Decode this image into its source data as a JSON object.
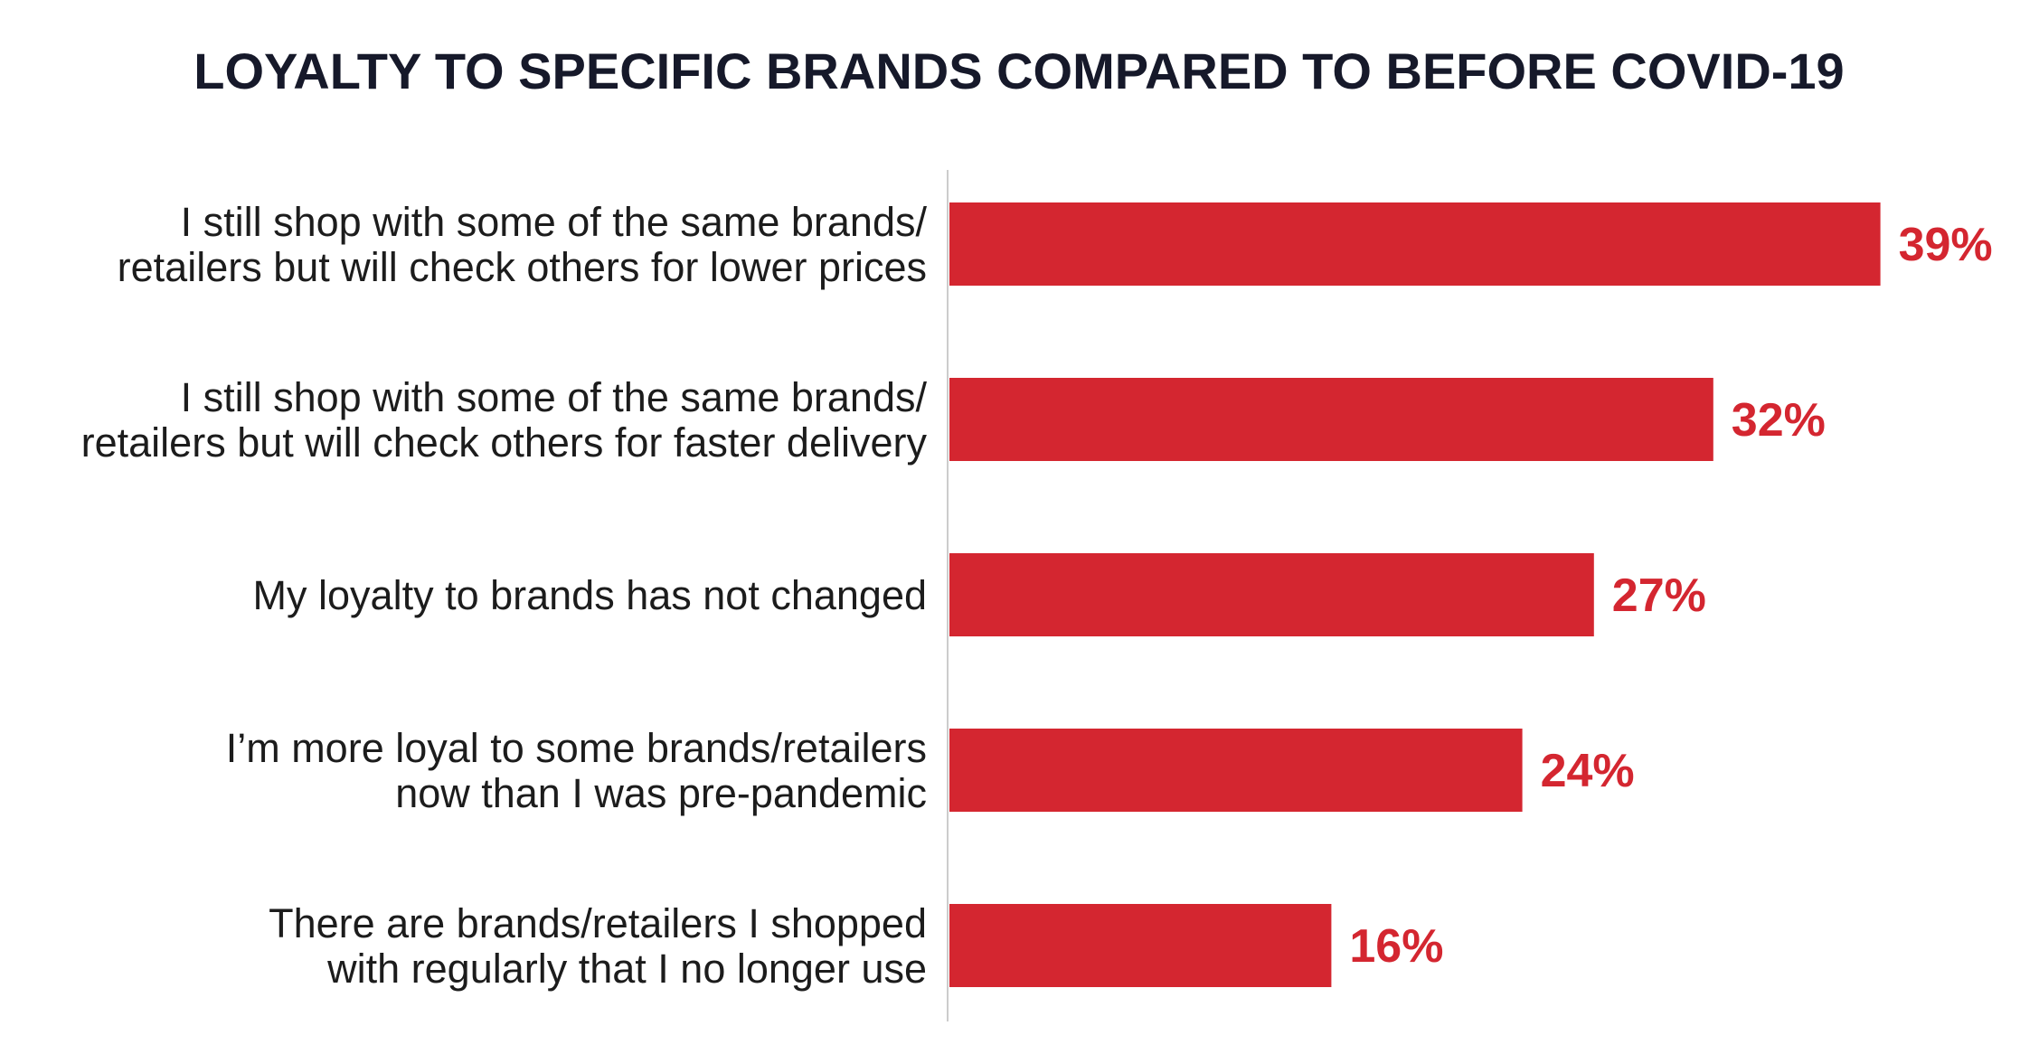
{
  "chart_data": {
    "type": "bar",
    "orientation": "horizontal",
    "title": "LOYALTY TO SPECIFIC BRANDS COMPARED TO BEFORE COVID-19",
    "categories": [
      [
        "I still shop with some of the same brands/",
        "retailers but will check others for lower prices"
      ],
      [
        "I still shop with some of the same brands/",
        "retailers but will check others for faster delivery"
      ],
      [
        "My loyalty to brands has not changed"
      ],
      [
        "I’m more loyal to some brands/retailers",
        "now than I was pre-pandemic"
      ],
      [
        "There are brands/retailers I shopped",
        "with regularly that I no longer use"
      ]
    ],
    "values": [
      39,
      32,
      27,
      24,
      16
    ],
    "value_labels": [
      "39%",
      "32%",
      "27%",
      "24%",
      "16%"
    ],
    "unit": "%",
    "xlim": [
      0,
      45
    ],
    "grid": false,
    "legend": "none",
    "colors": {
      "bar": "#d42630",
      "value_label": "#d42630",
      "title": "#16192a",
      "axis": "#cccccc"
    }
  }
}
